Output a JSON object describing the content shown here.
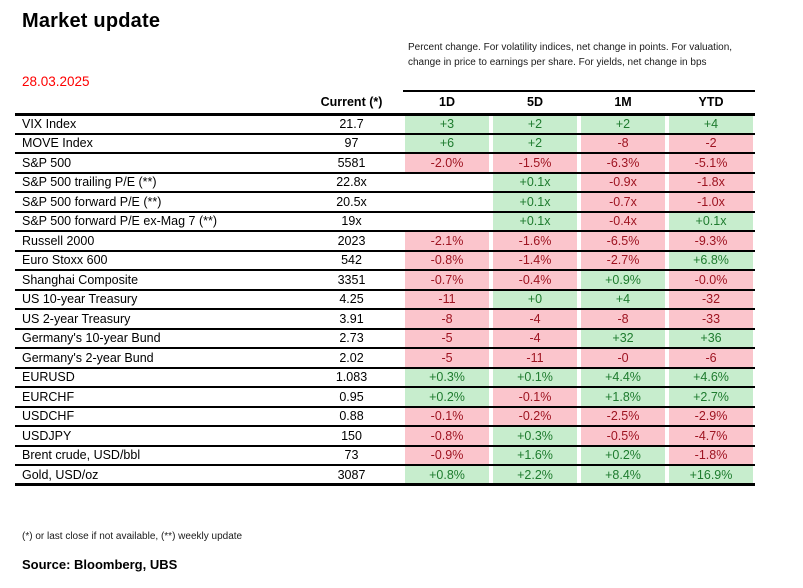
{
  "title": "Market update",
  "date": "28.03.2025",
  "note": "Percent change. For volatility indices, net change in points. For valuation, change in price to earnings per share. For yields,  net change in bps",
  "footnote": "(*) or last close if not available, (**) weekly update",
  "source": "Source: Bloomberg, UBS",
  "colors": {
    "positive_bg": "#c7edcd",
    "positive_text": "#1e7b2e",
    "negative_bg": "#fbc5cc",
    "negative_text": "#9e1421",
    "date_text": "#fe0000"
  },
  "table": {
    "current_label": "Current (*)",
    "change_columns": [
      "1D",
      "5D",
      "1M",
      "YTD"
    ],
    "rows": [
      {
        "name": "VIX Index",
        "current": "21.7",
        "changes": [
          [
            "+3",
            "pos"
          ],
          [
            "+2",
            "pos"
          ],
          [
            "+2",
            "pos"
          ],
          [
            "+4",
            "pos"
          ]
        ]
      },
      {
        "name": "MOVE Index",
        "current": "97",
        "changes": [
          [
            "+6",
            "pos"
          ],
          [
            "+2",
            "pos"
          ],
          [
            "-8",
            "neg"
          ],
          [
            "-2",
            "neg"
          ]
        ]
      },
      {
        "name": "S&P 500",
        "current": "5581",
        "changes": [
          [
            "-2.0%",
            "neg"
          ],
          [
            "-1.5%",
            "neg"
          ],
          [
            "-6.3%",
            "neg"
          ],
          [
            "-5.1%",
            "neg"
          ]
        ]
      },
      {
        "name": "S&P 500 trailing P/E (**)",
        "current": "22.8x",
        "changes": [
          [
            "",
            ""
          ],
          [
            "+0.1x",
            "pos"
          ],
          [
            "-0.9x",
            "neg"
          ],
          [
            "-1.8x",
            "neg"
          ]
        ]
      },
      {
        "name": "S&P 500 forward P/E (**)",
        "current": "20.5x",
        "changes": [
          [
            "",
            ""
          ],
          [
            "+0.1x",
            "pos"
          ],
          [
            "-0.7x",
            "neg"
          ],
          [
            "-1.0x",
            "neg"
          ]
        ]
      },
      {
        "name": "S&P 500 forward P/E ex-Mag 7 (**)",
        "current": "19x",
        "changes": [
          [
            "",
            ""
          ],
          [
            "+0.1x",
            "pos"
          ],
          [
            "-0.4x",
            "neg"
          ],
          [
            "+0.1x",
            "pos"
          ]
        ]
      },
      {
        "name": "Russell 2000",
        "current": "2023",
        "changes": [
          [
            "-2.1%",
            "neg"
          ],
          [
            "-1.6%",
            "neg"
          ],
          [
            "-6.5%",
            "neg"
          ],
          [
            "-9.3%",
            "neg"
          ]
        ]
      },
      {
        "name": "Euro Stoxx 600",
        "current": "542",
        "changes": [
          [
            "-0.8%",
            "neg"
          ],
          [
            "-1.4%",
            "neg"
          ],
          [
            "-2.7%",
            "neg"
          ],
          [
            "+6.8%",
            "pos"
          ]
        ]
      },
      {
        "name": "Shanghai Composite",
        "current": "3351",
        "changes": [
          [
            "-0.7%",
            "neg"
          ],
          [
            "-0.4%",
            "neg"
          ],
          [
            "+0.9%",
            "pos"
          ],
          [
            "-0.0%",
            "neg"
          ]
        ]
      },
      {
        "name": "US 10-year Treasury",
        "current": "4.25",
        "changes": [
          [
            "-11",
            "neg"
          ],
          [
            "+0",
            "pos"
          ],
          [
            "+4",
            "pos"
          ],
          [
            "-32",
            "neg"
          ]
        ]
      },
      {
        "name": "US 2-year Treasury",
        "current": "3.91",
        "changes": [
          [
            "-8",
            "neg"
          ],
          [
            "-4",
            "neg"
          ],
          [
            "-8",
            "neg"
          ],
          [
            "-33",
            "neg"
          ]
        ]
      },
      {
        "name": "Germany's 10-year Bund",
        "current": "2.73",
        "changes": [
          [
            "-5",
            "neg"
          ],
          [
            "-4",
            "neg"
          ],
          [
            "+32",
            "pos"
          ],
          [
            "+36",
            "pos"
          ]
        ]
      },
      {
        "name": "Germany's 2-year Bund",
        "current": "2.02",
        "changes": [
          [
            "-5",
            "neg"
          ],
          [
            "-11",
            "neg"
          ],
          [
            "-0",
            "neg"
          ],
          [
            "-6",
            "neg"
          ]
        ]
      },
      {
        "name": "EURUSD",
        "current": "1.083",
        "changes": [
          [
            "+0.3%",
            "pos"
          ],
          [
            "+0.1%",
            "pos"
          ],
          [
            "+4.4%",
            "pos"
          ],
          [
            "+4.6%",
            "pos"
          ]
        ]
      },
      {
        "name": "EURCHF",
        "current": "0.95",
        "changes": [
          [
            "+0.2%",
            "pos"
          ],
          [
            "-0.1%",
            "neg"
          ],
          [
            "+1.8%",
            "pos"
          ],
          [
            "+2.7%",
            "pos"
          ]
        ]
      },
      {
        "name": "USDCHF",
        "current": "0.88",
        "changes": [
          [
            "-0.1%",
            "neg"
          ],
          [
            "-0.2%",
            "neg"
          ],
          [
            "-2.5%",
            "neg"
          ],
          [
            "-2.9%",
            "neg"
          ]
        ]
      },
      {
        "name": "USDJPY",
        "current": "150",
        "changes": [
          [
            "-0.8%",
            "neg"
          ],
          [
            "+0.3%",
            "pos"
          ],
          [
            "-0.5%",
            "neg"
          ],
          [
            "-4.7%",
            "neg"
          ]
        ]
      },
      {
        "name": "Brent crude, USD/bbl",
        "current": "73",
        "changes": [
          [
            "-0.9%",
            "neg"
          ],
          [
            "+1.6%",
            "pos"
          ],
          [
            "+0.2%",
            "pos"
          ],
          [
            "-1.8%",
            "neg"
          ]
        ]
      },
      {
        "name": "Gold,  USD/oz",
        "current": "3087",
        "changes": [
          [
            "+0.8%",
            "pos"
          ],
          [
            "+2.2%",
            "pos"
          ],
          [
            "+8.4%",
            "pos"
          ],
          [
            "+16.9%",
            "pos"
          ]
        ]
      }
    ]
  }
}
